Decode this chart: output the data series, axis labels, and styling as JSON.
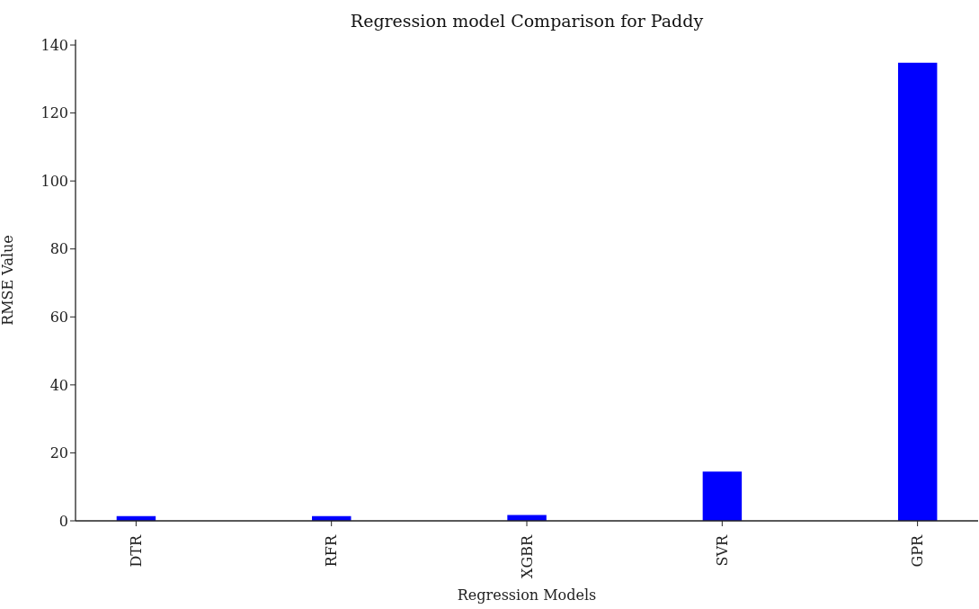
{
  "chart_data": {
    "type": "bar",
    "title": "Regression model Comparison for Paddy",
    "xlabel": "Regression Models",
    "ylabel": "RMSE Value",
    "categories": [
      "DTR",
      "RFR",
      "XGBR",
      "SVR",
      "GPR"
    ],
    "values": [
      1.4,
      1.4,
      1.7,
      14.5,
      134.8
    ],
    "color": "#0000ff",
    "ylim": [
      0,
      141.6
    ],
    "yticks": [
      0,
      20,
      40,
      60,
      80,
      100,
      120,
      140
    ]
  }
}
